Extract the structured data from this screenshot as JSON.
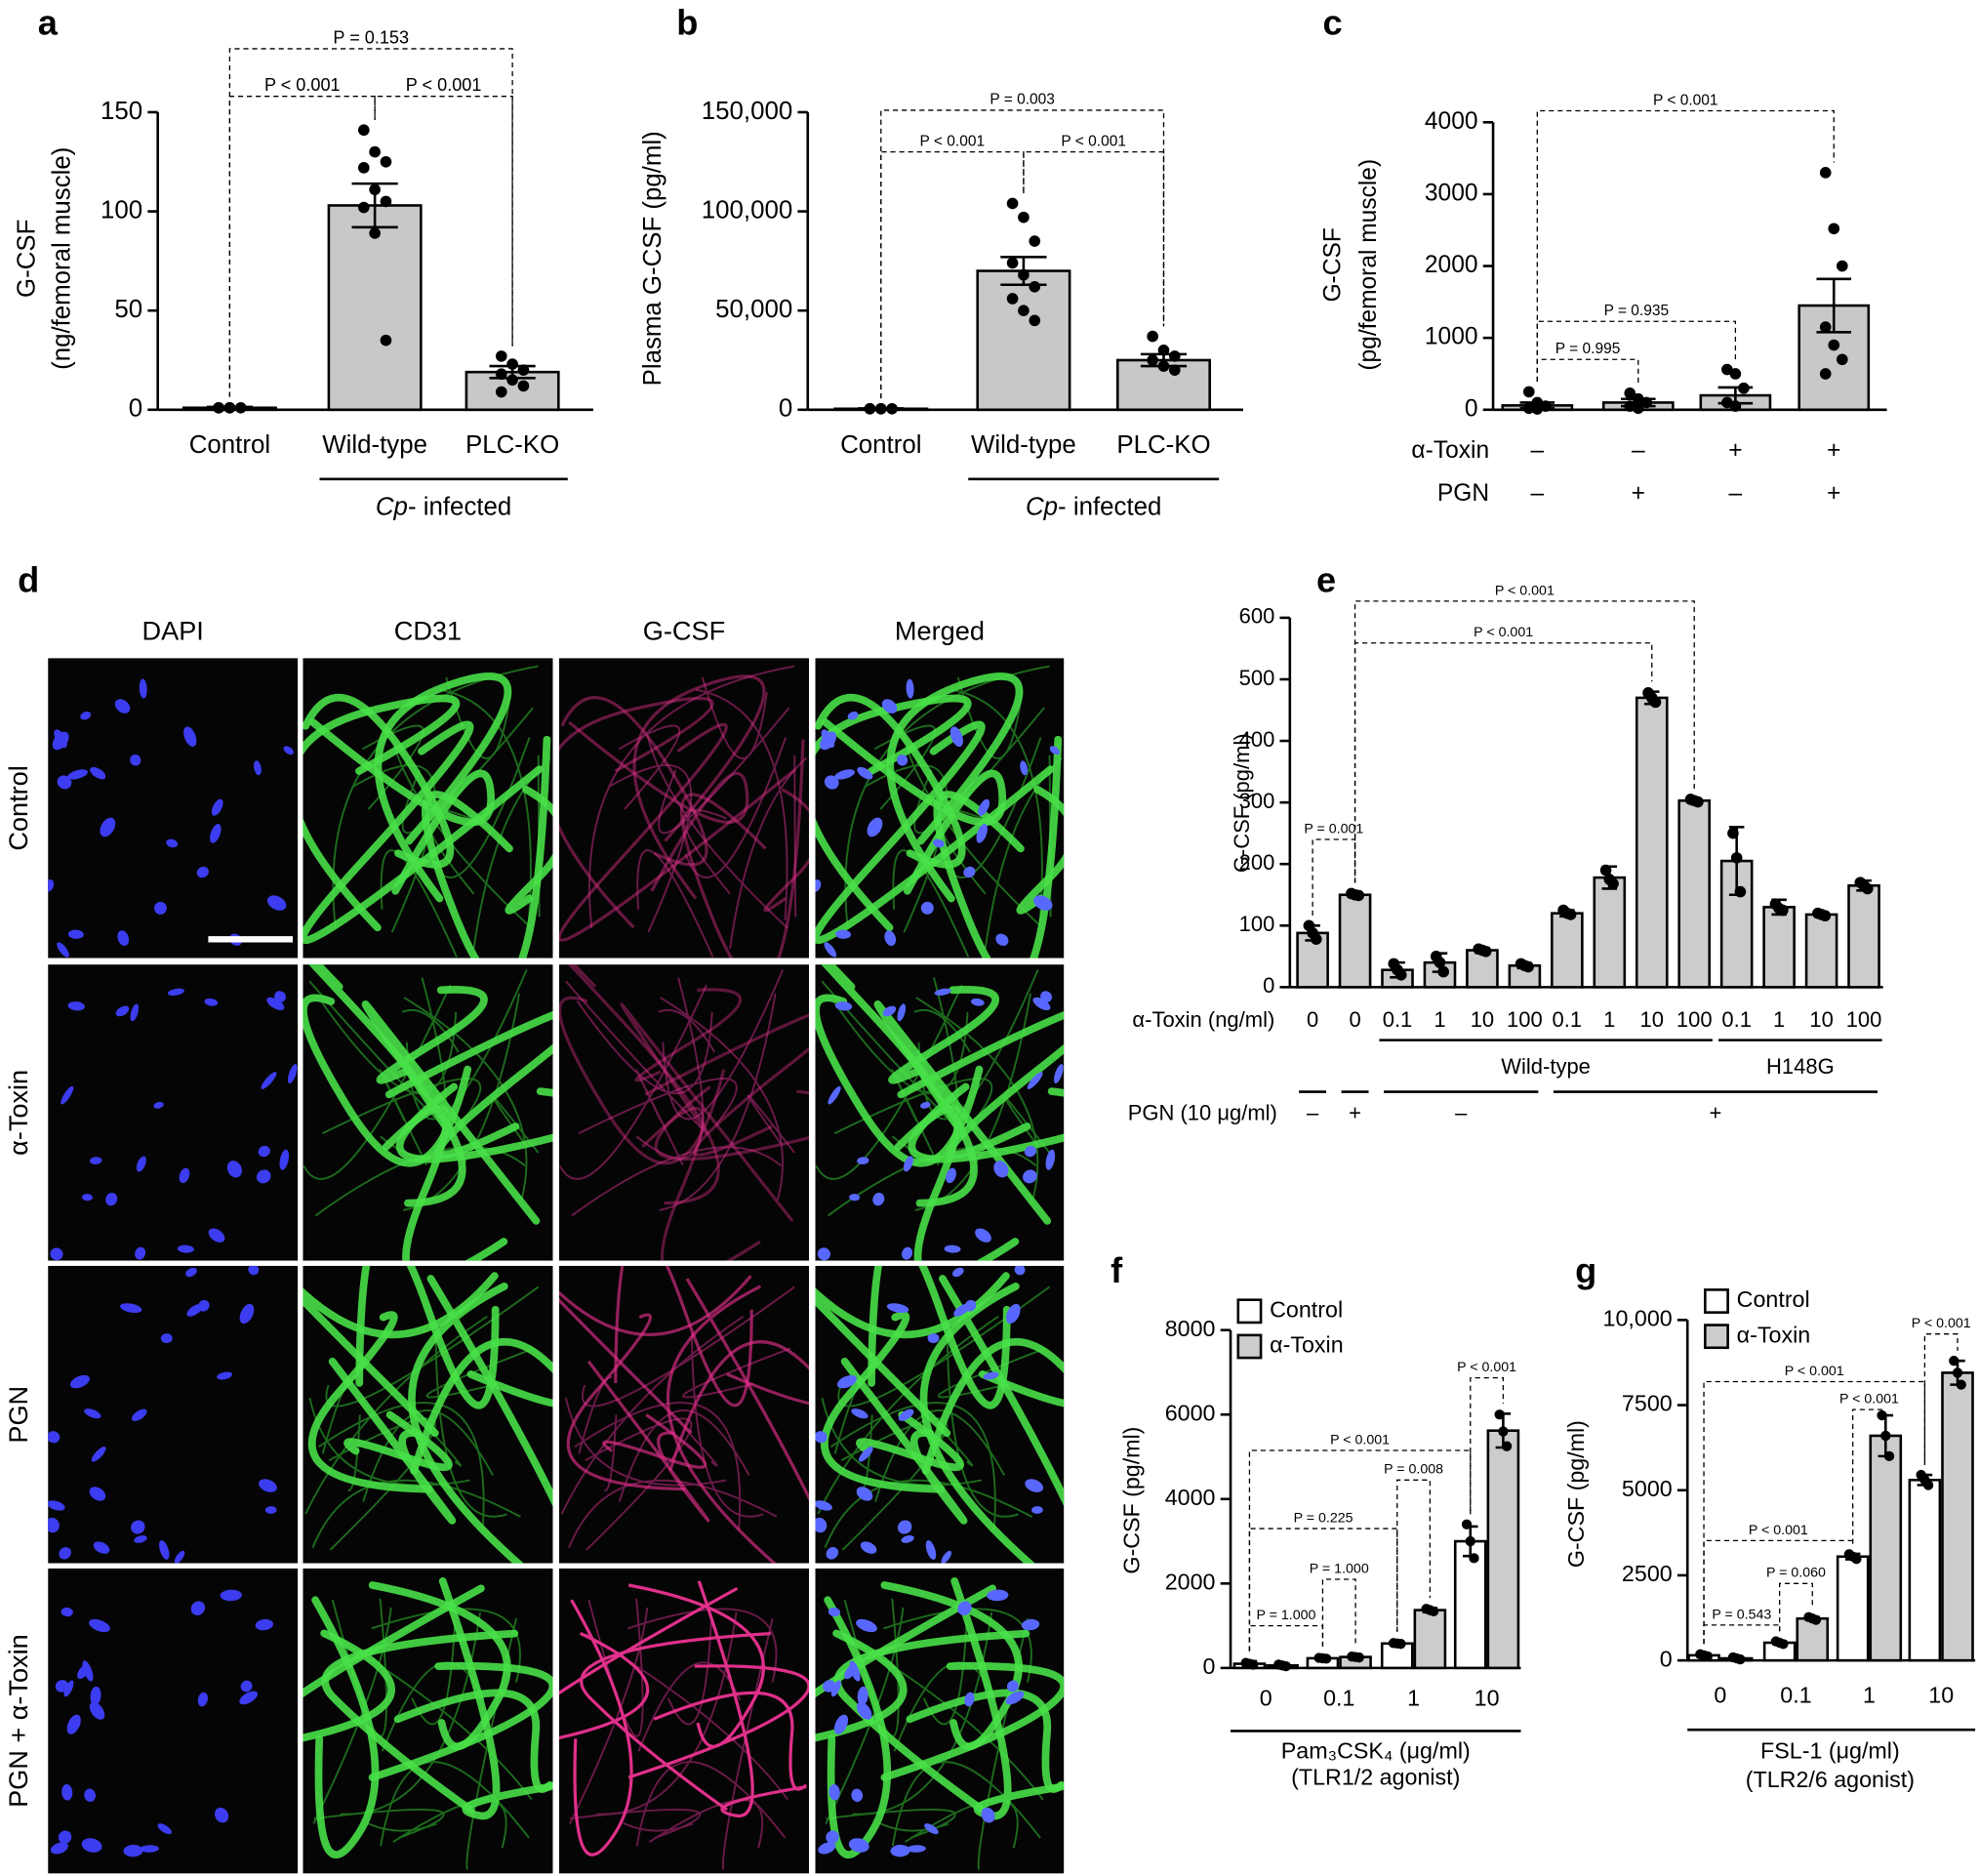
{
  "chart_data": [
    {
      "panel": "a",
      "type": "bar",
      "ylabel": [
        "G-CSF",
        "(ng/femoral muscle)"
      ],
      "categories": [
        "Control",
        "Wild-type",
        "PLC-KO"
      ],
      "values": [
        1,
        103,
        19
      ],
      "errors": [
        0.4,
        11,
        3
      ],
      "points": [
        [
          1,
          1,
          1,
          1,
          1
        ],
        [
          141,
          130,
          125,
          122,
          111,
          105,
          102,
          89,
          35
        ],
        [
          27,
          23,
          20,
          18,
          15,
          12,
          9
        ]
      ],
      "color": "#c8c8c8",
      "ylim": [
        0,
        150
      ],
      "yticks": [
        0,
        50,
        100,
        150
      ],
      "groups": [
        {
          "label": [
            "Cp",
            "- infected"
          ],
          "from": 1,
          "to": 2
        }
      ],
      "comparisons": [
        {
          "label": "P < 0.001",
          "from": 0,
          "to": 1,
          "y": 158
        },
        {
          "label": "P < 0.001",
          "from": 1,
          "to": 2,
          "y": 158
        },
        {
          "label": "P = 0.153",
          "from": 0,
          "to": 2,
          "y": 182
        }
      ]
    },
    {
      "panel": "b",
      "type": "bar",
      "ylabel": [
        "Plasma G-CSF (pg/ml)"
      ],
      "categories": [
        "Control",
        "Wild-type",
        "PLC-KO"
      ],
      "values": [
        500,
        70000,
        25000
      ],
      "errors": [
        150,
        7000,
        3000
      ],
      "points": [
        [
          500,
          500,
          500,
          500,
          500
        ],
        [
          104000,
          97000,
          85000,
          74000,
          68000,
          62000,
          56000,
          50000,
          45000
        ],
        [
          37000,
          30000,
          27000,
          25000,
          22000,
          20000
        ]
      ],
      "color": "#c8c8c8",
      "ylim": [
        0,
        150000
      ],
      "yticks": [
        0,
        {
          "value": 50000,
          "label": "50,000"
        },
        {
          "value": 100000,
          "label": "100,000"
        },
        {
          "value": 150000,
          "label": "150,000"
        }
      ],
      "groups": [
        {
          "label": [
            "Cp",
            "- infected"
          ],
          "from": 1,
          "to": 2
        }
      ],
      "comparisons": [
        {
          "label": "P < 0.001",
          "from": 0,
          "to": 1,
          "y": 130000
        },
        {
          "label": "P < 0.001",
          "from": 1,
          "to": 2,
          "y": 130000
        },
        {
          "label": "P = 0.003",
          "from": 0,
          "to": 2,
          "y": 151000
        }
      ]
    },
    {
      "panel": "c",
      "type": "bar",
      "ylabel": [
        "G-CSF",
        "(pg/femoral muscle)"
      ],
      "categories": [
        null,
        null,
        null,
        null
      ],
      "values": [
        60,
        100,
        200,
        1450
      ],
      "errors": [
        40,
        50,
        110,
        370
      ],
      "points": [
        [
          250,
          100,
          50,
          20,
          10
        ],
        [
          230,
          150,
          100,
          50,
          20
        ],
        [
          560,
          500,
          300,
          100,
          50
        ],
        [
          3300,
          2520,
          2000,
          1150,
          900,
          700,
          500
        ]
      ],
      "color": "#c8c8c8",
      "ylim": [
        0,
        4000
      ],
      "yticks": [
        0,
        1000,
        2000,
        3000,
        4000
      ],
      "factors": [
        {
          "label": "α-Toxin",
          "values": [
            "–",
            "–",
            "+",
            "+"
          ]
        },
        {
          "label": "PGN",
          "values": [
            "–",
            "+",
            "–",
            "+"
          ]
        }
      ],
      "comparisons": [
        {
          "label": "P = 0.995",
          "from": 0,
          "to": 1,
          "y": 700
        },
        {
          "label": "P = 0.935",
          "from": 0,
          "to": 2,
          "y": 1230
        },
        {
          "label": "P < 0.001",
          "from": 0,
          "to": 3,
          "y": 4160
        }
      ]
    },
    {
      "panel": "e",
      "type": "bar",
      "ylabel": [
        "G-CSF (pg/ml)"
      ],
      "xlabel": "α-Toxin (ng/ml)",
      "categories": [
        "0",
        "0",
        "0.1",
        "1",
        "10",
        "100",
        "0.1",
        "1",
        "10",
        "100",
        "0.1",
        "1",
        "10",
        "100"
      ],
      "values": [
        88,
        150,
        28,
        40,
        60,
        35,
        120,
        178,
        470,
        303,
        205,
        130,
        118,
        165
      ],
      "errors": [
        12,
        3,
        12,
        15,
        4,
        4,
        5,
        18,
        10,
        3,
        55,
        12,
        3,
        8
      ],
      "points": [
        [
          100,
          88,
          78
        ],
        [
          152,
          150,
          149
        ],
        [
          38,
          28,
          20
        ],
        [
          50,
          40,
          25
        ],
        [
          62,
          60,
          58
        ],
        [
          38,
          35,
          33
        ],
        [
          125,
          120,
          118
        ],
        [
          190,
          175,
          168
        ],
        [
          478,
          470,
          463
        ],
        [
          305,
          303,
          301
        ],
        [
          250,
          210,
          155
        ],
        [
          135,
          128,
          125
        ],
        [
          120,
          118,
          116
        ],
        [
          170,
          165,
          160
        ]
      ],
      "color": "#cccccc",
      "ylim": [
        0,
        600
      ],
      "yticks": [
        0,
        100,
        200,
        300,
        400,
        500,
        600
      ],
      "groups": [
        {
          "label": "Wild-type",
          "from": 2,
          "to": 9
        },
        {
          "label": "H148G",
          "from": 10,
          "to": 13
        }
      ],
      "factors": [
        {
          "label": "PGN (10 μg/ml)",
          "values": [
            "–",
            "+",
            "–",
            null,
            null,
            null,
            "+",
            null,
            null,
            null,
            null,
            null,
            null,
            null
          ]
        }
      ],
      "comparisons": [
        {
          "label": "P = 0.001",
          "from": 0,
          "to": 1,
          "y": 240
        },
        {
          "label": "P < 0.001",
          "from": 1,
          "to": 8,
          "y": 559
        },
        {
          "label": "P < 0.001",
          "from": 1,
          "to": 9,
          "y": 627
        }
      ]
    },
    {
      "panel": "f",
      "type": "bar",
      "ylabel": [
        "G-CSF (pg/ml)"
      ],
      "xlabel": [
        "Pam₃CSK₄ (μg/ml)",
        "(TLR1/2 agonist)"
      ],
      "categories": [
        "0",
        "0.1",
        "1",
        "10"
      ],
      "legend": "upper left",
      "series": [
        {
          "name": "Control",
          "color": "#ffffff",
          "values": [
            100,
            230,
            580,
            3000
          ],
          "errors": [
            60,
            40,
            40,
            350
          ],
          "points": [
            [
              120,
              100,
              80
            ],
            [
              240,
              230,
              220
            ],
            [
              590,
              580,
              570
            ],
            [
              3400,
              3000,
              2600
            ]
          ]
        },
        {
          "name": "α-Toxin",
          "color": "#cccccc",
          "values": [
            60,
            260,
            1370,
            5620
          ],
          "errors": [
            40,
            30,
            50,
            400
          ],
          "points": [
            [
              80,
              60,
              40
            ],
            [
              270,
              260,
              250
            ],
            [
              1400,
              1370,
              1340
            ],
            [
              6000,
              5600,
              5250
            ]
          ]
        }
      ],
      "ylim": [
        0,
        8000
      ],
      "yticks": [
        0,
        2000,
        4000,
        6000,
        8000
      ],
      "comparisons": [
        {
          "label": "P = 1.000",
          "from": [
            0,
            0
          ],
          "to": [
            1,
            0
          ],
          "y": 1000
        },
        {
          "label": "P = 1.000",
          "from": [
            1,
            0
          ],
          "to": [
            1,
            1
          ],
          "y": 2100
        },
        {
          "label": "P = 0.225",
          "from": [
            0,
            0
          ],
          "to": [
            2,
            0
          ],
          "y": 3300
        },
        {
          "label": "P = 0.008",
          "from": [
            2,
            0
          ],
          "to": [
            2,
            1
          ],
          "y": 4450
        },
        {
          "label": "P < 0.001",
          "from": [
            0,
            0
          ],
          "to": [
            3,
            0
          ],
          "y": 5150
        },
        {
          "label": "P < 0.001",
          "from": [
            3,
            0
          ],
          "to": [
            3,
            1
          ],
          "y": 6870
        }
      ]
    },
    {
      "panel": "g",
      "type": "bar",
      "ylabel": [
        "G-CSF (pg/ml)"
      ],
      "xlabel": [
        "FSL-1 (μg/ml)",
        "(TLR2/6 agonist)"
      ],
      "categories": [
        "0",
        "0.1",
        "1",
        "10"
      ],
      "legend": "upper left",
      "series": [
        {
          "name": "Control",
          "color": "#ffffff",
          "values": [
            150,
            520,
            3050,
            5300
          ],
          "errors": [
            40,
            40,
            80,
            150
          ],
          "points": [
            [
              180,
              150,
              120
            ],
            [
              560,
              520,
              480
            ],
            [
              3120,
              3050,
              2980
            ],
            [
              5450,
              5300,
              5150
            ]
          ]
        },
        {
          "name": "α-Toxin",
          "color": "#cccccc",
          "values": [
            60,
            1230,
            6600,
            8450
          ],
          "errors": [
            30,
            40,
            600,
            350
          ],
          "points": [
            [
              90,
              60,
              30
            ],
            [
              1270,
              1230,
              1190
            ],
            [
              7200,
              6600,
              6000
            ],
            [
              8800,
              8450,
              8100
            ]
          ]
        }
      ],
      "ylim": [
        0,
        10000
      ],
      "yticks": [
        0,
        2500,
        5000,
        7500,
        {
          "value": 10000,
          "label": "10,000"
        }
      ],
      "comparisons": [
        {
          "label": "P = 0.543",
          "from": [
            0,
            0
          ],
          "to": [
            1,
            0
          ],
          "y": 1040
        },
        {
          "label": "P = 0.060",
          "from": [
            1,
            0
          ],
          "to": [
            1,
            1
          ],
          "y": 2260
        },
        {
          "label": "P < 0.001",
          "from": [
            0,
            0
          ],
          "to": [
            2,
            0
          ],
          "y": 3520
        },
        {
          "label": "P < 0.001",
          "from": [
            2,
            0
          ],
          "to": [
            2,
            1
          ],
          "y": 7370
        },
        {
          "label": "P < 0.001",
          "from": [
            0,
            0
          ],
          "to": [
            3,
            0
          ],
          "y": 8190
        },
        {
          "label": "P < 0.001",
          "from": [
            3,
            0
          ],
          "to": [
            3,
            1
          ],
          "y": 9590
        }
      ]
    }
  ],
  "figure_d": {
    "panel": "d",
    "columns": [
      {
        "label": "DAPI",
        "color": "#4a4ae0"
      },
      {
        "label": "CD31",
        "color": "#1f9a2a"
      },
      {
        "label": "G-CSF",
        "color": "#c23a9c"
      },
      {
        "label": "Merged",
        "color": "#111111"
      }
    ],
    "rows": [
      "Control",
      "α-Toxin",
      "PGN",
      "PGN + α-Toxin"
    ]
  }
}
